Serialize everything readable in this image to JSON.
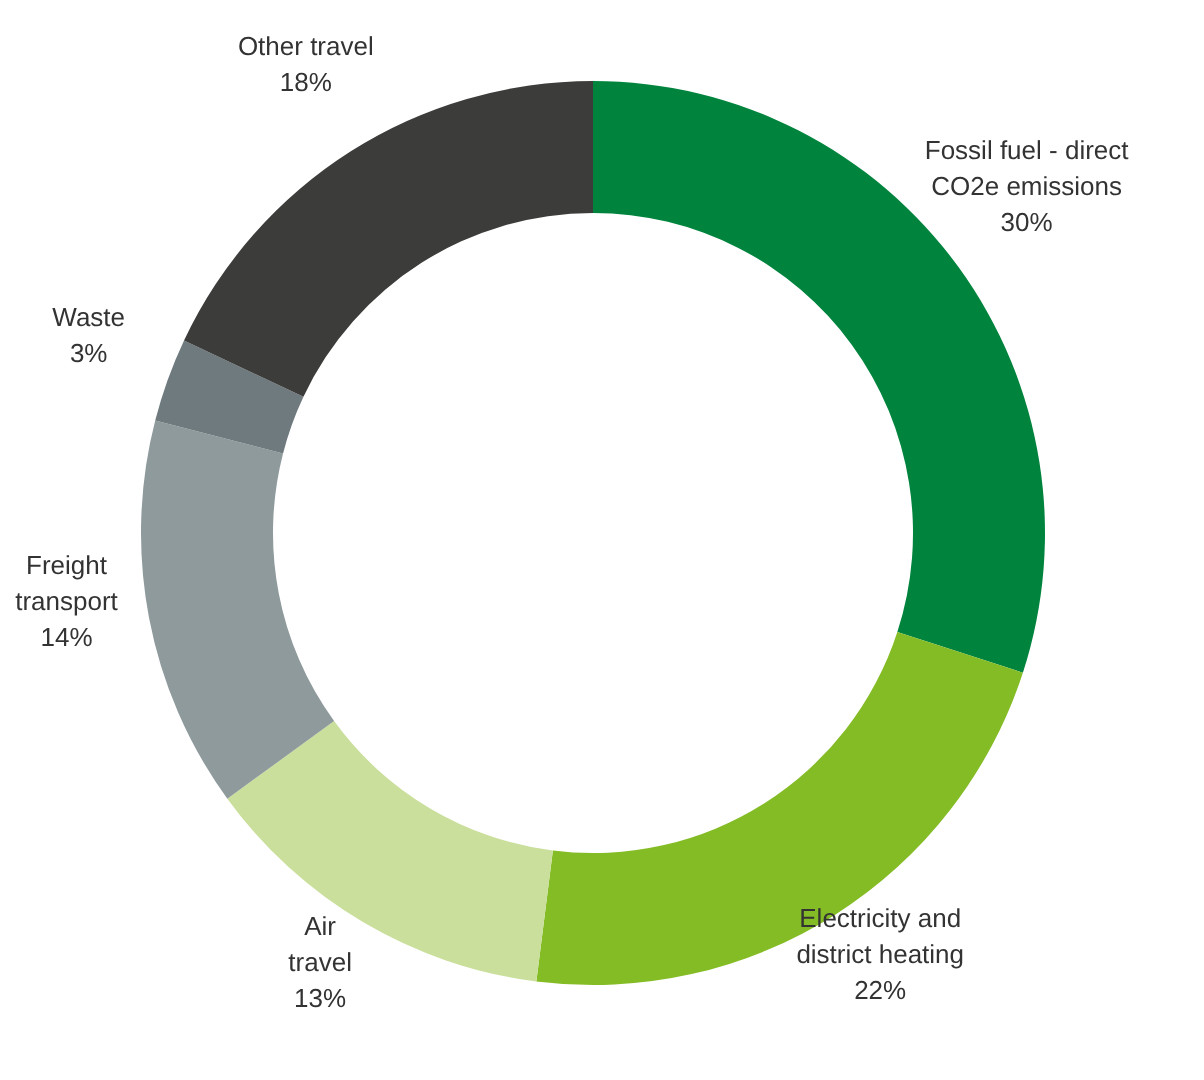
{
  "chart_data": {
    "type": "donut",
    "categories": [
      "Fossil fuel - direct\nCO2e emissions",
      "Electricity and\ndistrict heating",
      "Air\ntravel",
      "Freight\ntransport",
      "Waste",
      "Other travel"
    ],
    "values": [
      30,
      22,
      13,
      14,
      3,
      18
    ],
    "value_labels": [
      "30%",
      "22%",
      "13%",
      "14%",
      "3%",
      "18%"
    ],
    "colors": [
      "#00843d",
      "#84bc25",
      "#cadf9c",
      "#8f9a9c",
      "#6f7a7e",
      "#3c3c3a"
    ]
  }
}
